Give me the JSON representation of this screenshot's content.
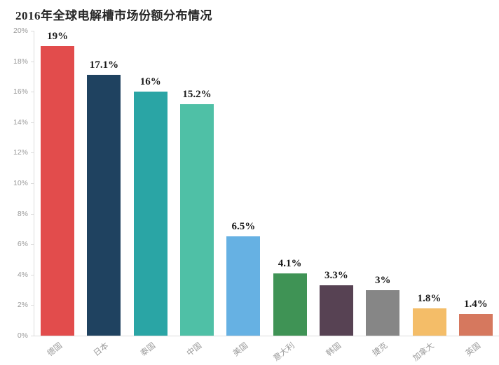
{
  "title": "2016年全球电解槽市场份额分布情况",
  "chart_data": {
    "type": "bar",
    "title": "2016年全球电解槽市场份额分布情况",
    "categories": [
      "德国",
      "日本",
      "泰国",
      "中国",
      "美国",
      "意大利",
      "韩国",
      "捷克",
      "加拿大",
      "英国"
    ],
    "values": [
      19,
      17.1,
      16,
      15.2,
      6.5,
      4.1,
      3.3,
      3,
      1.8,
      1.4
    ],
    "value_labels": [
      "19%",
      "17.1%",
      "16%",
      "15.2%",
      "6.5%",
      "4.1%",
      "3.3%",
      "3%",
      "1.8%",
      "1.4%"
    ],
    "bar_colors": [
      "#e24c4c",
      "#1f4260",
      "#2aa5a5",
      "#4fc0a6",
      "#66b1e3",
      "#3f9355",
      "#574253",
      "#868686",
      "#f4bd68",
      "#d6785e"
    ],
    "xlabel": "",
    "ylabel": "",
    "ylim": [
      0,
      20
    ],
    "y_ticks": [
      "0%",
      "2%",
      "4%",
      "6%",
      "8%",
      "10%",
      "12%",
      "14%",
      "16%",
      "18%",
      "20%"
    ],
    "grid": false,
    "legend": "none",
    "axis_color": "#dcdcdc",
    "tick_label_color": "#9b9b9b",
    "value_label_color": "#1a1a1a"
  }
}
